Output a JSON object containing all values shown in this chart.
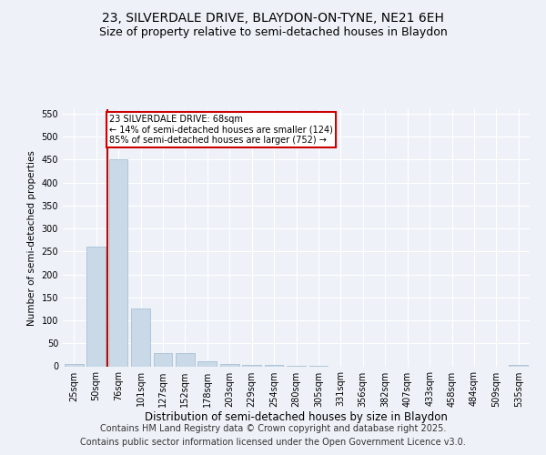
{
  "title_line1": "23, SILVERDALE DRIVE, BLAYDON-ON-TYNE, NE21 6EH",
  "title_line2": "Size of property relative to semi-detached houses in Blaydon",
  "xlabel": "Distribution of semi-detached houses by size in Blaydon",
  "ylabel": "Number of semi-detached properties",
  "categories": [
    "25sqm",
    "50sqm",
    "76sqm",
    "101sqm",
    "127sqm",
    "152sqm",
    "178sqm",
    "203sqm",
    "229sqm",
    "254sqm",
    "280sqm",
    "305sqm",
    "331sqm",
    "356sqm",
    "382sqm",
    "407sqm",
    "433sqm",
    "458sqm",
    "484sqm",
    "509sqm",
    "535sqm"
  ],
  "values": [
    5,
    260,
    450,
    125,
    28,
    28,
    10,
    5,
    2,
    2,
    1,
    1,
    0,
    0,
    0,
    0,
    0,
    0,
    0,
    0,
    3
  ],
  "bar_color": "#c9d9e8",
  "bar_edge_color": "#a0b8cc",
  "red_line_index": 2,
  "annotation_text": "23 SILVERDALE DRIVE: 68sqm\n← 14% of semi-detached houses are smaller (124)\n85% of semi-detached houses are larger (752) →",
  "annotation_box_color": "#ffffff",
  "annotation_box_edge": "#cc0000",
  "red_line_color": "#cc0000",
  "ylim": [
    0,
    560
  ],
  "yticks": [
    0,
    50,
    100,
    150,
    200,
    250,
    300,
    350,
    400,
    450,
    500,
    550
  ],
  "background_color": "#eef2f8",
  "plot_bg_color": "#eef2f8",
  "footer_line1": "Contains HM Land Registry data © Crown copyright and database right 2025.",
  "footer_line2": "Contains public sector information licensed under the Open Government Licence v3.0.",
  "title_fontsize": 10,
  "subtitle_fontsize": 9,
  "footer_fontsize": 7,
  "grid_color": "#ffffff",
  "tick_label_fontsize": 7,
  "ylabel_fontsize": 7.5,
  "xlabel_fontsize": 8.5
}
